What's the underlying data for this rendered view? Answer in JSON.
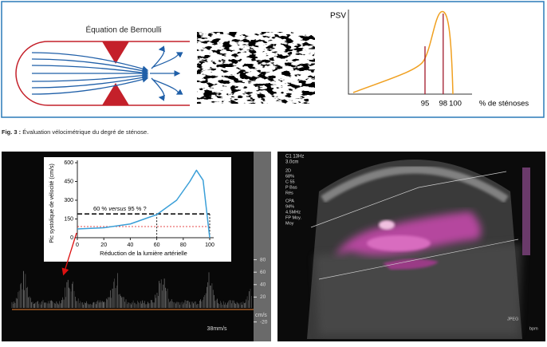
{
  "top_panel": {
    "bernoulli_label": "Équation de Bernoulli",
    "psv_chart": {
      "y_label": "PSV",
      "xticks": [
        95,
        98,
        100
      ],
      "x_label": "% de sténoses"
    }
  },
  "caption": {
    "label": "Fig. 3 :",
    "text": "Évaluation vélocimétrique du degré de sténose."
  },
  "doppler_panel": {
    "inset_chart": {
      "y_label": "Pic systolique de vélocité (cm/s)",
      "x_label": "Réduction de la lumière artérielle",
      "annotation": {
        "before": "60 % ",
        "emphasis": "versus",
        "after": " 95 % ?"
      },
      "xlim": [
        0,
        100
      ],
      "ylim": [
        0,
        600
      ],
      "xticks": [
        0,
        20,
        40,
        60,
        80,
        100
      ],
      "yticks": [
        0,
        150,
        300,
        450,
        600
      ],
      "curve_x": [
        0,
        20,
        40,
        60,
        75,
        85,
        90,
        95,
        100
      ],
      "curve_y": [
        70,
        80,
        110,
        185,
        300,
        450,
        540,
        460,
        0
      ],
      "threshold_y": 190
    },
    "scale_ticks": [
      80,
      60,
      40,
      20,
      -20
    ],
    "unit": "cm/s",
    "sweep": "38mm/s"
  },
  "duplex_panel": {
    "header": [
      "C1 13Hz",
      "3.0cm"
    ],
    "settings": [
      "2D",
      "68%",
      "C 55",
      "P Bas",
      "Rés",
      "CPA",
      "94%",
      "4.5MHz",
      "FP Moy.",
      "Moy"
    ],
    "footer": "JPEG",
    "bpm": "bpm"
  }
}
